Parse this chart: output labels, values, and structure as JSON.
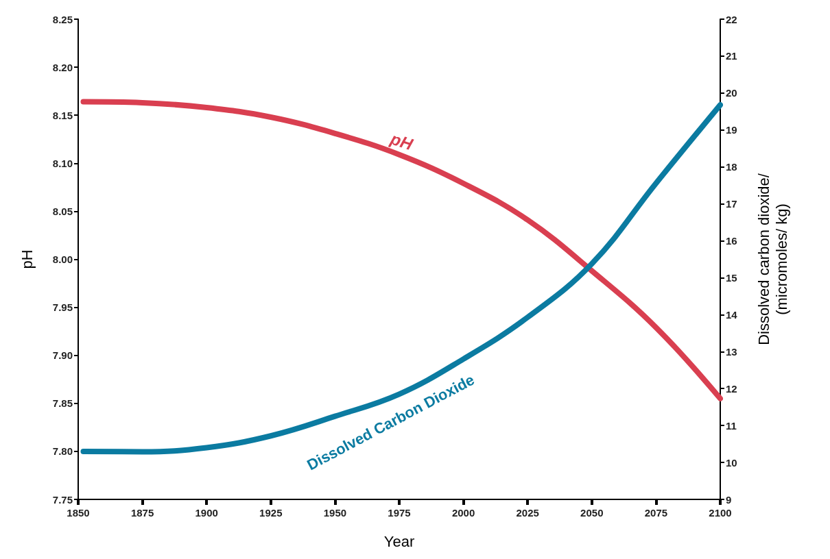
{
  "chart_data": {
    "type": "line",
    "xlabel": "Year",
    "ylabel": "pH",
    "y2label": "Dissolved carbon dioxide/\n(micromoles/ kg)",
    "x": [
      1852,
      1875,
      1900,
      1925,
      1950,
      1975,
      2000,
      2025,
      2050,
      2075,
      2100
    ],
    "series": [
      {
        "name": "pH",
        "color": "#d93f50",
        "values": [
          8.164,
          8.163,
          8.158,
          8.148,
          8.131,
          8.109,
          8.079,
          8.041,
          7.988,
          7.929,
          7.855
        ]
      },
      {
        "name": "Dissolved Carbon Dioxide",
        "color": "#0b7ba1",
        "axis": "y2",
        "values": [
          10.3,
          10.29,
          10.4,
          10.72,
          11.25,
          11.85,
          12.8,
          13.93,
          15.38,
          17.56,
          19.68
        ]
      }
    ],
    "xlim": [
      1850,
      2100
    ],
    "xticks": [
      1850,
      1875,
      1900,
      1925,
      1950,
      1975,
      2000,
      2025,
      2050,
      2075,
      2100
    ],
    "ylim": [
      7.75,
      8.25
    ],
    "yticks": [
      {
        "value": 7.75,
        "label": "7.75"
      },
      {
        "value": 7.8,
        "label": "7.80"
      },
      {
        "value": 7.85,
        "label": "7.85"
      },
      {
        "value": 7.9,
        "label": "7.90"
      },
      {
        "value": 7.95,
        "label": "7.95"
      },
      {
        "value": 8.0,
        "label": "8.00"
      },
      {
        "value": 8.05,
        "label": "8.05"
      },
      {
        "value": 8.1,
        "label": "8.10"
      },
      {
        "value": 8.15,
        "label": "8.15"
      },
      {
        "value": 8.2,
        "label": "8.20"
      },
      {
        "value": 8.25,
        "label": "8.25"
      }
    ],
    "y2lim": [
      9,
      22
    ],
    "y2ticks": [
      9,
      10,
      11,
      12,
      13,
      14,
      15,
      16,
      17,
      18,
      19,
      20,
      21,
      22
    ],
    "grid": false,
    "legend": false,
    "marker": "none",
    "line_style": "solid"
  }
}
